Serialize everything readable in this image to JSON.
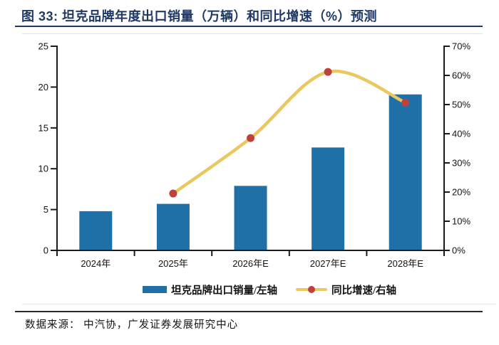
{
  "figure": {
    "title": "图 33:  坦克品牌年度出口销量（万辆）和同比增速（%）预测",
    "source": "数据来源：  中汽协，广发证券发展研究中心"
  },
  "legend": {
    "bar_label": "坦克品牌出口销量/左轴",
    "line_label": "同比增速/右轴"
  },
  "colors": {
    "title_navy": "#1F3864",
    "bar_blue": "#2070A8",
    "line_yellow": "#E9C85F",
    "marker_red": "#BE413E",
    "axis_black": "#1a1a1a"
  },
  "chart_data": {
    "type": "bar",
    "title": "坦克品牌年度出口销量（万辆）和同比增速（%）预测",
    "categories": [
      "2024年",
      "2025年",
      "2026年E",
      "2027年E",
      "2028年E"
    ],
    "series": [
      {
        "name": "坦克品牌出口销量/左轴",
        "type": "bar",
        "axis": "left",
        "values": [
          4.8,
          5.7,
          7.9,
          12.6,
          19.1
        ]
      },
      {
        "name": "同比增速/右轴",
        "type": "line",
        "axis": "right",
        "values": [
          null,
          19.5,
          38.5,
          61.2,
          50.7
        ]
      }
    ],
    "left_axis": {
      "min": 0,
      "max": 25,
      "step": 5,
      "suffix": "",
      "ticks": [
        "0",
        "5",
        "10",
        "15",
        "20",
        "25"
      ]
    },
    "right_axis": {
      "min": 0,
      "max": 70,
      "step": 10,
      "suffix": "%",
      "ticks": [
        "0%",
        "10%",
        "20%",
        "30%",
        "40%",
        "50%",
        "60%",
        "70%"
      ]
    },
    "grid": false,
    "legend_position": "bottom",
    "line_smooth": true
  }
}
